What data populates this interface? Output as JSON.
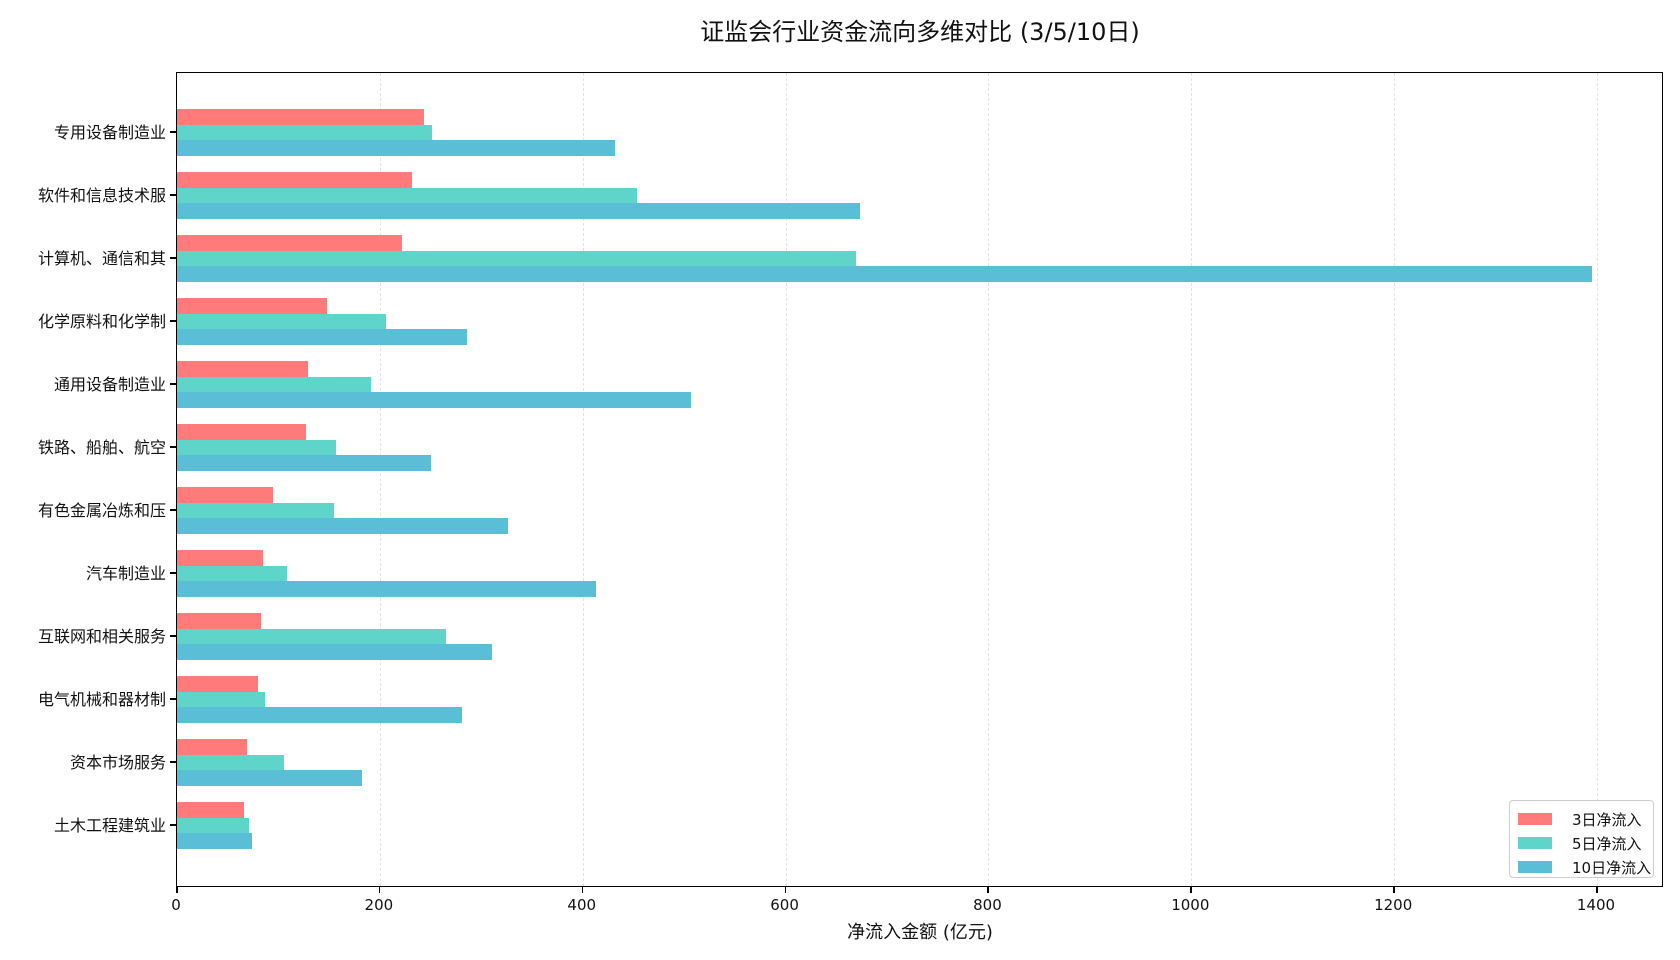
{
  "chart_data": {
    "type": "bar",
    "orientation": "horizontal",
    "title": "证监会行业资金流向多维对比 (3/5/10日)",
    "xlabel": "净流入金额 (亿元)",
    "ylabel": "",
    "xlim": [
      0,
      1466
    ],
    "xticks": [
      0,
      200,
      400,
      600,
      800,
      1000,
      1200,
      1400
    ],
    "grid": "x-dashed",
    "legend_position": "lower right",
    "categories": [
      "专用设备制造业",
      "软件和信息技术服",
      "计算机、通信和其",
      "化学原料和化学制",
      "通用设备制造业",
      "铁路、船舶、航空",
      "有色金属冶炼和压",
      "汽车制造业",
      "互联网和相关服务",
      "电气机械和器材制",
      "资本市场服务",
      "土木工程建筑业"
    ],
    "series": [
      {
        "name": "3日净流入",
        "color": "#FF7A7A",
        "values": [
          244,
          232,
          222,
          148,
          129,
          127,
          95,
          85,
          83,
          80,
          69,
          66
        ]
      },
      {
        "name": "5日净流入",
        "color": "#5FD4C8",
        "values": [
          251,
          454,
          669,
          206,
          191,
          157,
          155,
          108,
          265,
          87,
          105,
          71
        ]
      },
      {
        "name": "10日净流入",
        "color": "#5ABED6",
        "values": [
          432,
          673,
          1395,
          286,
          507,
          250,
          326,
          413,
          311,
          281,
          182,
          74
        ]
      }
    ]
  }
}
